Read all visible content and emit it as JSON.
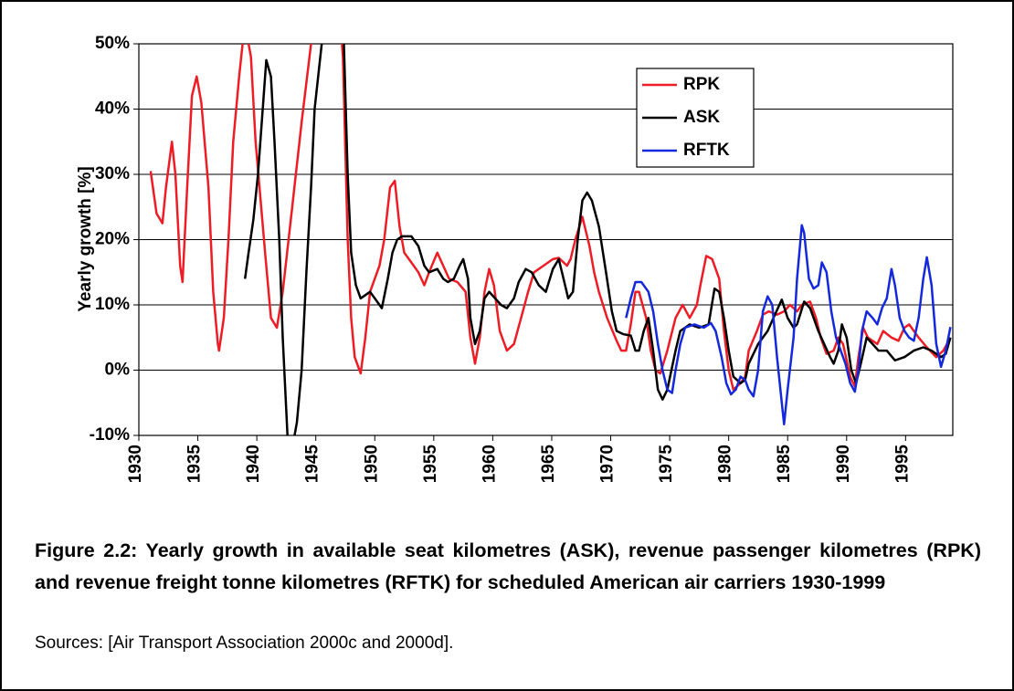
{
  "chart_data": {
    "type": "line",
    "y_label": "Yearly growth [%]",
    "xlim": [
      1930,
      1999
    ],
    "ylim": [
      -10,
      50
    ],
    "xticks": [
      1930,
      1935,
      1940,
      1945,
      1950,
      1955,
      1960,
      1965,
      1970,
      1975,
      1980,
      1985,
      1990,
      1995
    ],
    "yticks": [
      {
        "value": -10,
        "label": "-10%"
      },
      {
        "value": 0,
        "label": "0%"
      },
      {
        "value": 10,
        "label": "10%"
      },
      {
        "value": 20,
        "label": "20%"
      },
      {
        "value": 30,
        "label": "30%"
      },
      {
        "value": 40,
        "label": "40%"
      },
      {
        "value": 50,
        "label": "50%"
      }
    ],
    "grid": true,
    "legend_position": "upper right",
    "series": [
      {
        "name": "RPK",
        "color": "#ee1c25",
        "x": [
          1931.0,
          1931.5,
          1932.0,
          1932.3,
          1932.8,
          1933.1,
          1933.5,
          1933.7,
          1934.1,
          1934.5,
          1934.9,
          1935.3,
          1935.9,
          1936.3,
          1936.7,
          1936.8,
          1937.2,
          1937.6,
          1938.0,
          1938.5,
          1938.8,
          1939.1,
          1939.5,
          1939.9,
          1940.7,
          1941.2,
          1941.7,
          1942.2,
          1943.0,
          1943.8,
          1944.6,
          1944.9,
          1945.7,
          1947.0,
          1947.3,
          1947.7,
          1948.0,
          1948.3,
          1948.8,
          1949.2,
          1949.6,
          1950.4,
          1950.8,
          1951.3,
          1951.7,
          1952.1,
          1952.5,
          1953.1,
          1953.7,
          1954.2,
          1954.6,
          1955.3,
          1955.8,
          1956.3,
          1957.0,
          1957.7,
          1958.1,
          1958.5,
          1958.9,
          1959.3,
          1959.7,
          1960.1,
          1960.6,
          1961.2,
          1961.8,
          1962.4,
          1963.0,
          1963.5,
          1964.3,
          1965.1,
          1965.6,
          1966.3,
          1966.6,
          1967.0,
          1967.6,
          1968.2,
          1968.6,
          1969.0,
          1969.7,
          1970.5,
          1970.9,
          1971.3,
          1971.7,
          1972.1,
          1972.4,
          1973.0,
          1973.4,
          1973.8,
          1974.2,
          1974.8,
          1975.5,
          1976.1,
          1976.7,
          1977.3,
          1977.6,
          1978.1,
          1978.6,
          1979.2,
          1979.6,
          1980.0,
          1980.4,
          1981.0,
          1981.4,
          1981.7,
          1982.4,
          1982.9,
          1983.4,
          1984.1,
          1984.7,
          1985.2,
          1985.8,
          1986.2,
          1986.9,
          1987.4,
          1987.8,
          1988.3,
          1988.9,
          1989.3,
          1989.7,
          1990.3,
          1990.7,
          1991.0,
          1991.4,
          1991.8,
          1992.6,
          1993.1,
          1993.8,
          1994.4,
          1994.9,
          1995.3,
          1996.1,
          1996.8,
          1997.6,
          1998.2,
          1998.8
        ],
        "values": [
          30.5,
          24,
          22.5,
          28,
          35,
          30,
          16,
          13.5,
          28,
          42,
          45,
          41,
          28,
          12,
          4,
          3,
          8,
          20,
          35,
          45,
          50,
          52,
          48,
          35,
          18,
          8,
          6.5,
          12,
          25,
          38,
          50,
          58,
          65,
          55,
          48,
          20,
          8,
          2,
          -0.5,
          5,
          12,
          16,
          20,
          28,
          29,
          22,
          18,
          16.5,
          15,
          13,
          15,
          18,
          16,
          14,
          13.5,
          12,
          5,
          1,
          5,
          12,
          15.5,
          13,
          6,
          3,
          4,
          8,
          12,
          15,
          16,
          17,
          17.2,
          16,
          17,
          20,
          23.5,
          19,
          15,
          12,
          8,
          4.5,
          3,
          3,
          7,
          12,
          12,
          8,
          3,
          0,
          -0.5,
          3,
          8,
          10,
          8,
          10,
          13,
          17.5,
          17,
          14,
          6,
          0,
          -3,
          -2,
          -1,
          3,
          6,
          8.5,
          9,
          8.5,
          9,
          10,
          9,
          10,
          10.5,
          8,
          5,
          2.5,
          3,
          5,
          4,
          -1,
          -2.5,
          2,
          6.5,
          5,
          4,
          6,
          5,
          4.5,
          6.5,
          7,
          5,
          3.5,
          2,
          3,
          5
        ]
      },
      {
        "name": "ASK",
        "color": "#000000",
        "x": [
          1939.0,
          1939.3,
          1939.7,
          1940.1,
          1940.5,
          1940.8,
          1941.2,
          1941.5,
          1941.9,
          1942.2,
          1942.6,
          1943.0,
          1943.4,
          1943.8,
          1944.2,
          1944.6,
          1944.9,
          1945.5,
          1946.1,
          1946.9,
          1947.3,
          1947.7,
          1948.0,
          1948.4,
          1948.8,
          1949.2,
          1949.6,
          1950.0,
          1950.4,
          1950.6,
          1951.1,
          1951.5,
          1951.9,
          1952.3,
          1953.1,
          1953.7,
          1954.2,
          1954.6,
          1955.3,
          1955.8,
          1956.2,
          1956.7,
          1957.2,
          1957.5,
          1957.9,
          1958.1,
          1958.5,
          1958.9,
          1959.3,
          1959.7,
          1960.2,
          1960.7,
          1961.2,
          1961.8,
          1962.2,
          1962.8,
          1963.3,
          1963.9,
          1964.5,
          1965.1,
          1965.6,
          1966.0,
          1966.4,
          1966.8,
          1967.2,
          1967.6,
          1968.0,
          1968.4,
          1969.0,
          1969.6,
          1970.1,
          1970.5,
          1971.1,
          1971.7,
          1972.1,
          1972.4,
          1972.8,
          1973.2,
          1973.6,
          1974.0,
          1974.4,
          1974.8,
          1975.5,
          1975.9,
          1976.7,
          1977.5,
          1978.3,
          1978.8,
          1979.2,
          1979.6,
          1980.0,
          1980.4,
          1981.0,
          1981.4,
          1981.7,
          1982.5,
          1983.3,
          1983.8,
          1984.5,
          1985.0,
          1985.5,
          1985.8,
          1986.4,
          1986.9,
          1987.6,
          1988.1,
          1988.6,
          1988.9,
          1989.3,
          1989.6,
          1990.0,
          1990.4,
          1990.8,
          1991.2,
          1991.7,
          1992.2,
          1992.7,
          1993.4,
          1994.1,
          1994.9,
          1995.7,
          1996.5,
          1997.2,
          1998.0,
          1998.4,
          1998.8
        ],
        "values": [
          14,
          18,
          23,
          30,
          40,
          47.5,
          45,
          35,
          20,
          5,
          -10,
          -12,
          -8,
          0,
          15,
          28,
          40,
          50,
          65,
          70,
          55,
          30,
          18,
          13,
          11,
          11.5,
          12,
          11,
          10,
          9.5,
          14,
          18,
          20,
          20.5,
          20.5,
          19,
          16,
          15,
          15.5,
          14,
          13.5,
          14,
          16,
          17,
          14,
          8,
          4,
          6,
          11,
          12,
          11,
          10,
          9.5,
          11,
          13.5,
          15.5,
          15,
          13,
          12,
          15.5,
          17,
          14,
          11,
          12,
          20,
          26,
          27.2,
          26,
          22,
          15,
          9,
          6,
          5.5,
          5.3,
          3,
          3,
          6,
          8,
          3,
          -3,
          -4.5,
          -3,
          3,
          6,
          7,
          6.5,
          7,
          12.5,
          12,
          8,
          3,
          -1,
          -2,
          -1.5,
          1,
          4,
          6,
          8,
          10.8,
          8,
          6.5,
          7,
          10.5,
          9.5,
          6,
          4,
          2,
          1,
          3,
          7,
          5,
          0,
          -2,
          1,
          5,
          4,
          3,
          3,
          1.5,
          2,
          3,
          3.5,
          3,
          2,
          2.5,
          5
        ]
      },
      {
        "name": "RFTK",
        "color": "#1428dc",
        "x": [
          1971.3,
          1971.7,
          1972.1,
          1972.6,
          1973.2,
          1973.6,
          1974.0,
          1974.4,
          1974.8,
          1975.2,
          1975.5,
          1975.9,
          1976.3,
          1977.1,
          1977.9,
          1978.5,
          1978.9,
          1979.4,
          1979.8,
          1980.2,
          1980.6,
          1981.0,
          1981.4,
          1981.7,
          1982.1,
          1982.5,
          1982.9,
          1983.3,
          1983.7,
          1984.1,
          1984.5,
          1984.7,
          1985.0,
          1985.5,
          1985.8,
          1986.2,
          1986.4,
          1986.8,
          1987.2,
          1987.6,
          1987.9,
          1988.3,
          1988.7,
          1989.1,
          1989.5,
          1989.9,
          1990.3,
          1990.7,
          1991.0,
          1991.3,
          1991.7,
          1992.2,
          1992.6,
          1993.0,
          1993.4,
          1993.8,
          1994.1,
          1994.5,
          1994.9,
          1995.3,
          1995.7,
          1996.1,
          1996.5,
          1996.8,
          1997.2,
          1997.6,
          1998.0,
          1998.4,
          1998.8
        ],
        "values": [
          8,
          11,
          13.5,
          13.5,
          12,
          9,
          4,
          0,
          -3,
          -3.5,
          0,
          4,
          6.5,
          7,
          6.5,
          7.2,
          6,
          2,
          -2,
          -3.7,
          -3,
          -1,
          -1.5,
          -3,
          -4,
          0,
          9,
          11.3,
          10,
          2,
          -5,
          -8.3,
          -3,
          5,
          14,
          22.2,
          21,
          14,
          12.5,
          13,
          16.5,
          15,
          9,
          5,
          3,
          1,
          -2,
          -3.3,
          0,
          6,
          9,
          8,
          7,
          9.5,
          11,
          15.5,
          13,
          8,
          6,
          5,
          4.5,
          8,
          14,
          17.3,
          13,
          4,
          0.5,
          3,
          6.6
        ]
      }
    ]
  },
  "caption": "Figure 2.2: Yearly growth in available seat kilometres (ASK), revenue passenger kilometres (RPK) and revenue freight tonne kilometres (RFTK) for scheduled American air carriers 1930-1999",
  "source": "Sources: [Air Transport Association 2000c and 2000d]."
}
